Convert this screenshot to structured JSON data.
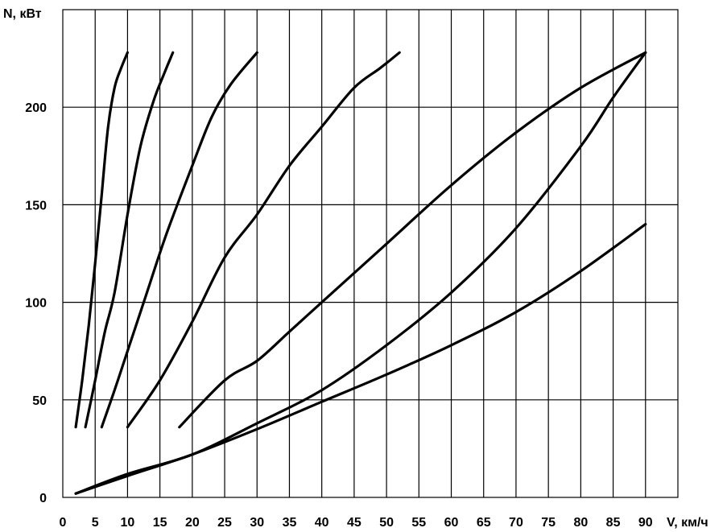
{
  "chart_data": {
    "type": "line",
    "xlabel": "V, км/ч",
    "ylabel": "N, кВт",
    "xlim": [
      0,
      95
    ],
    "ylim": [
      0,
      250
    ],
    "x_ticks": [
      0,
      5,
      10,
      15,
      20,
      25,
      30,
      35,
      40,
      45,
      50,
      55,
      60,
      65,
      70,
      75,
      80,
      85,
      90
    ],
    "y_ticks": [
      0,
      50,
      100,
      150,
      200
    ],
    "grid": true,
    "series": [
      {
        "x": [
          2,
          3,
          4,
          5,
          6,
          7,
          8,
          9,
          10
        ],
        "y": [
          36,
          60,
          88,
          120,
          155,
          190,
          210,
          220,
          228
        ]
      },
      {
        "x": [
          3.5,
          5,
          6.5,
          8,
          10,
          12,
          14,
          15.5,
          17
        ],
        "y": [
          36,
          60,
          85,
          105,
          145,
          180,
          203,
          216,
          228
        ]
      },
      {
        "x": [
          6,
          8,
          10,
          13,
          16,
          20,
          23,
          26,
          30
        ],
        "y": [
          36,
          55,
          75,
          105,
          135,
          170,
          195,
          212,
          228
        ]
      },
      {
        "x": [
          10,
          15,
          20,
          25,
          30,
          35,
          40,
          45,
          49,
          52
        ],
        "y": [
          36,
          60,
          90,
          123,
          145,
          170,
          190,
          210,
          220,
          228
        ]
      },
      {
        "x": [
          18,
          25,
          30,
          35,
          40,
          50,
          60,
          70,
          80,
          90
        ],
        "y": [
          36,
          60,
          70,
          85,
          100,
          130,
          160,
          187,
          210,
          228
        ]
      },
      {
        "x": [
          2,
          10,
          20,
          30,
          40,
          50,
          60,
          70,
          80,
          85,
          90
        ],
        "y": [
          2,
          12,
          22,
          38,
          55,
          78,
          105,
          138,
          180,
          205,
          228
        ]
      },
      {
        "x": [
          2,
          10,
          20,
          30,
          40,
          50,
          60,
          70,
          80,
          90
        ],
        "y": [
          2,
          11,
          22,
          35,
          49,
          63,
          78,
          95,
          116,
          140
        ]
      }
    ]
  }
}
